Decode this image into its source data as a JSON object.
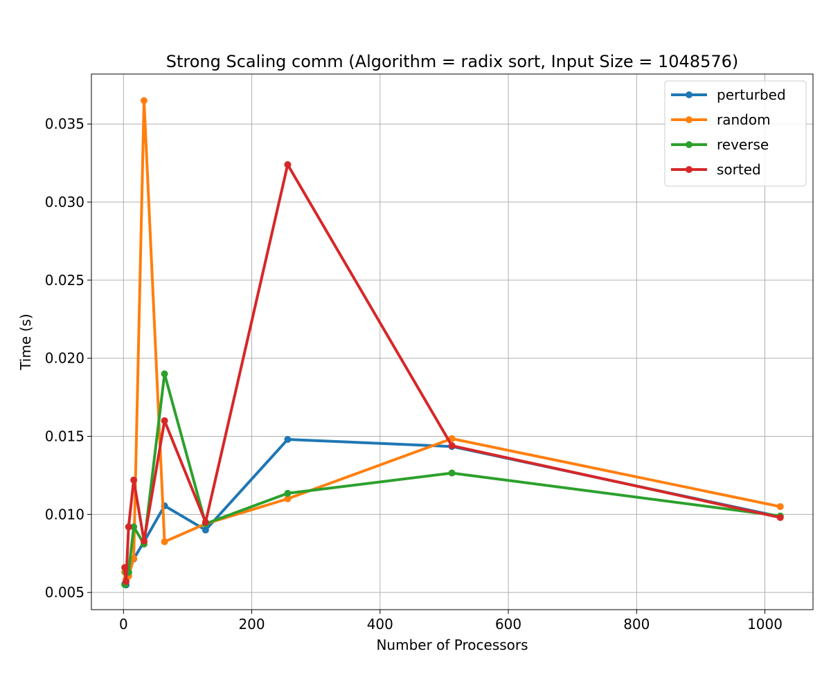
{
  "chart_data": {
    "type": "line",
    "title": "Strong Scaling comm (Algorithm = radix sort, Input Size = 1048576)",
    "xlabel": "Number of Processors",
    "ylabel": "Time (s)",
    "xlim": [
      -50,
      1075
    ],
    "ylim": [
      0.0039,
      0.0382
    ],
    "xticks": [
      0,
      200,
      400,
      600,
      800,
      1000
    ],
    "xtick_labels": [
      "0",
      "200",
      "400",
      "600",
      "800",
      "1000"
    ],
    "yticks": [
      0.005,
      0.01,
      0.015,
      0.02,
      0.025,
      0.03,
      0.035
    ],
    "ytick_labels": [
      "0.005",
      "0.010",
      "0.015",
      "0.020",
      "0.025",
      "0.030",
      "0.035"
    ],
    "grid": true,
    "legend_position": "top-right",
    "x": [
      2,
      4,
      8,
      16,
      32,
      64,
      128,
      256,
      512,
      1024
    ],
    "series": [
      {
        "name": "perturbed",
        "color": "#1f77b4",
        "values": [
          0.00555,
          0.00548,
          0.00625,
          0.00715,
          0.00825,
          0.01055,
          0.009,
          0.0148,
          0.01435,
          0.00985
        ]
      },
      {
        "name": "random",
        "color": "#ff7f0e",
        "values": [
          0.0063,
          0.00585,
          0.00605,
          0.00718,
          0.0365,
          0.00825,
          0.0094,
          0.011,
          0.01485,
          0.0105
        ]
      },
      {
        "name": "reverse",
        "color": "#2ca02c",
        "values": [
          0.0055,
          0.0063,
          0.0063,
          0.0092,
          0.0081,
          0.019,
          0.0094,
          0.01135,
          0.01265,
          0.0099
        ]
      },
      {
        "name": "sorted",
        "color": "#d62728",
        "values": [
          0.0066,
          0.0057,
          0.0092,
          0.0122,
          0.0083,
          0.016,
          0.0095,
          0.0324,
          0.0144,
          0.0098
        ]
      }
    ]
  }
}
